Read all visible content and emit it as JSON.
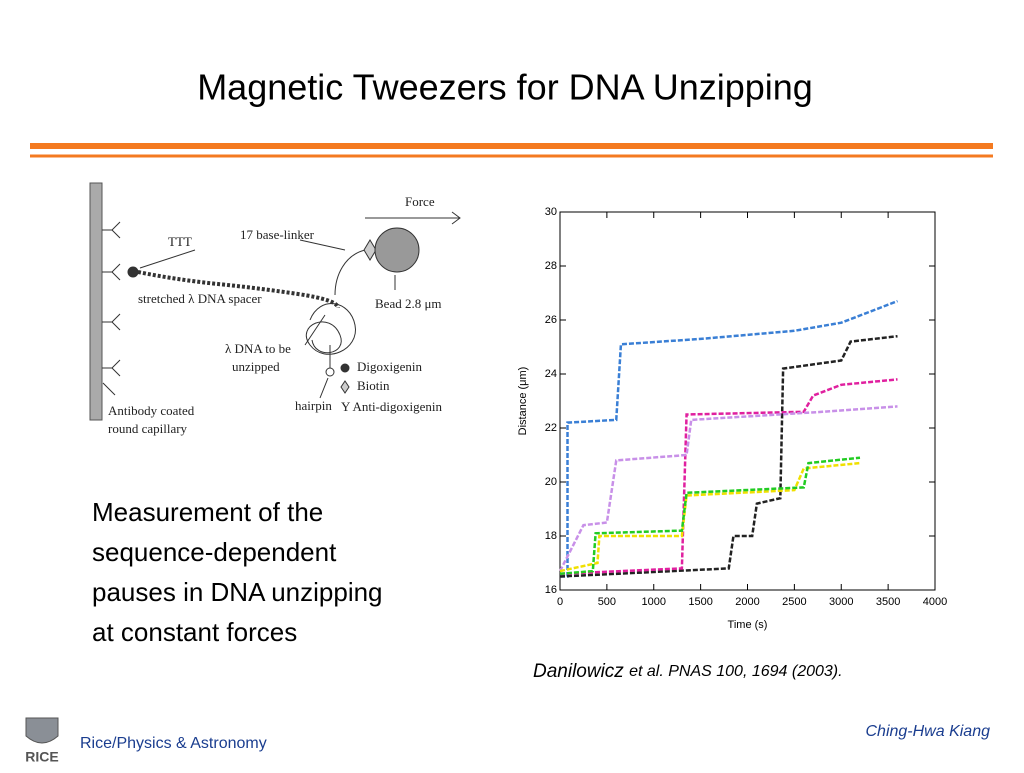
{
  "slide": {
    "title": "Magnetic Tweezers for DNA Unzipping",
    "body": [
      "Measurement of the",
      "sequence-dependent",
      "pauses in DNA unzipping",
      "at constant forces"
    ],
    "citation": {
      "author": "Danilowicz",
      "rest": "et al. PNAS 100, 1694 (2003)."
    },
    "footer": {
      "left": "Rice/Physics & Astronomy",
      "right": "Ching-Hwa Kiang",
      "logo": "RICE"
    }
  },
  "diagram": {
    "force": "Force",
    "ttt": "TTT",
    "linker": "17 base-linker",
    "spacer": "stretched λ DNA spacer",
    "bead": "Bead 2.8 μm",
    "unzipped": [
      "λ DNA to be",
      "unzipped"
    ],
    "digoxigenin": "Digoxigenin",
    "biotin": "Biotin",
    "anti": "Y Anti-digoxigenin",
    "hairpin": "hairpin",
    "capillary": [
      "Antibody coated",
      "round capillary"
    ]
  },
  "chart_data": {
    "type": "line",
    "xlabel": "Time (s)",
    "ylabel": "Distance (μm)",
    "xlim": [
      0,
      4000
    ],
    "ylim": [
      16,
      30
    ],
    "xticks": [
      0,
      500,
      1000,
      1500,
      2000,
      2500,
      3000,
      3500,
      4000
    ],
    "yticks": [
      16,
      18,
      20,
      22,
      24,
      26,
      28,
      30
    ],
    "series": [
      {
        "color": "#3a7fd5",
        "x": [
          0,
          80,
          80,
          600,
          650,
          1500,
          2500,
          3000,
          3600
        ],
        "values": [
          16.5,
          16.5,
          22.2,
          22.3,
          25.1,
          25.3,
          25.6,
          25.9,
          26.7
        ]
      },
      {
        "color": "#222222",
        "x": [
          0,
          1800,
          1850,
          2050,
          2100,
          2350,
          2380,
          3000,
          3100,
          3600
        ],
        "values": [
          16.5,
          16.8,
          18.0,
          18.0,
          19.2,
          19.4,
          24.2,
          24.5,
          25.2,
          25.4
        ]
      },
      {
        "color": "#e0209f",
        "x": [
          0,
          1300,
          1350,
          2600,
          2700,
          3000,
          3600
        ],
        "values": [
          16.6,
          16.8,
          22.5,
          22.6,
          23.2,
          23.6,
          23.8
        ]
      },
      {
        "color": "#c890e8",
        "x": [
          0,
          250,
          500,
          600,
          1350,
          1400,
          2800,
          3600
        ],
        "values": [
          16.7,
          18.4,
          18.5,
          20.8,
          21.0,
          22.3,
          22.6,
          22.8
        ]
      },
      {
        "color": "#f0e000",
        "x": [
          0,
          400,
          420,
          1300,
          1350,
          2500,
          2600,
          3200
        ],
        "values": [
          16.7,
          17.0,
          18.0,
          18.0,
          19.5,
          19.7,
          20.5,
          20.7
        ]
      },
      {
        "color": "#22cc22",
        "x": [
          0,
          350,
          380,
          1300,
          1350,
          2600,
          2650,
          3200
        ],
        "values": [
          16.6,
          16.7,
          18.1,
          18.2,
          19.6,
          19.8,
          20.7,
          20.9
        ]
      }
    ]
  }
}
